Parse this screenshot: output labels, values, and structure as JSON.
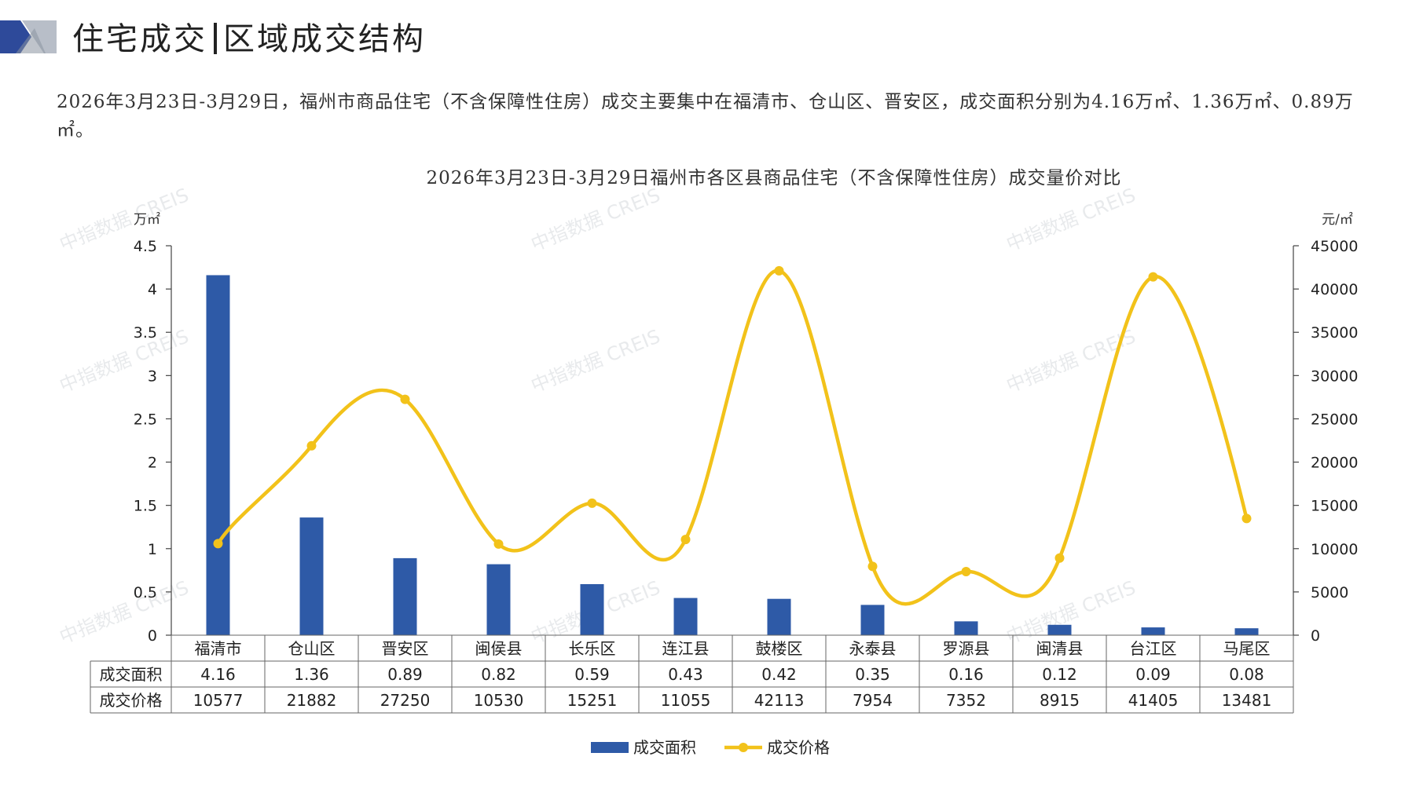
{
  "page": {
    "title_left": "住宅成交",
    "title_right": "区域成交结构",
    "summary": "2026年3月23日-3月29日，福州市商品住宅（不含保障性住房）成交主要集中在福清市、仓山区、晋安区，成交面积分别为4.16万㎡、1.36万㎡、0.89万㎡。",
    "watermark": "中指数据 CREIS"
  },
  "colors": {
    "bar": "#2E5AA7",
    "line": "#F2C21A",
    "deco_dark": "#2E4A9A",
    "deco_light": "#B8BEC8"
  },
  "icons": [
    "header-decoration-icon",
    "legend-bar-swatch-icon",
    "legend-line-swatch-icon"
  ],
  "chart_data": {
    "type": "bar",
    "title": "2026年3月23日-3月29日福州市各区县商品住宅（不含保障性住房）成交量价对比",
    "categories": [
      "福清市",
      "仓山区",
      "晋安区",
      "闽侯县",
      "长乐区",
      "连江县",
      "鼓楼区",
      "永泰县",
      "罗源县",
      "闽清县",
      "台江区",
      "马尾区"
    ],
    "series": [
      {
        "name": "成交面积",
        "type": "bar",
        "axis": "left",
        "values": [
          4.16,
          1.36,
          0.89,
          0.82,
          0.59,
          0.43,
          0.42,
          0.35,
          0.16,
          0.12,
          0.09,
          0.08
        ]
      },
      {
        "name": "成交价格",
        "type": "line",
        "axis": "right",
        "smooth": true,
        "values": [
          10577,
          21882,
          27250,
          10530,
          15251,
          11055,
          42113,
          7954,
          7352,
          8915,
          41405,
          13481
        ]
      }
    ],
    "left_axis": {
      "unit": "万㎡",
      "ticks": [
        "0",
        "0.5",
        "1",
        "1.5",
        "2",
        "2.5",
        "3",
        "3.5",
        "4",
        "4.5"
      ],
      "ylim": [
        0,
        4.5
      ]
    },
    "right_axis": {
      "unit": "元/㎡",
      "ticks": [
        "0",
        "5000",
        "10000",
        "15000",
        "20000",
        "25000",
        "30000",
        "35000",
        "40000",
        "45000"
      ],
      "ylim": [
        0,
        45000
      ]
    },
    "table": {
      "row_labels": [
        "成交面积",
        "成交价格"
      ],
      "rows": [
        [
          "4.16",
          "1.36",
          "0.89",
          "0.82",
          "0.59",
          "0.43",
          "0.42",
          "0.35",
          "0.16",
          "0.12",
          "0.09",
          "0.08"
        ],
        [
          "10577",
          "21882",
          "27250",
          "10530",
          "15251",
          "11055",
          "42113",
          "7954",
          "7352",
          "8915",
          "41405",
          "13481"
        ]
      ]
    },
    "legend": {
      "position": "bottom",
      "items": [
        "成交面积",
        "成交价格"
      ]
    },
    "grid": false
  }
}
